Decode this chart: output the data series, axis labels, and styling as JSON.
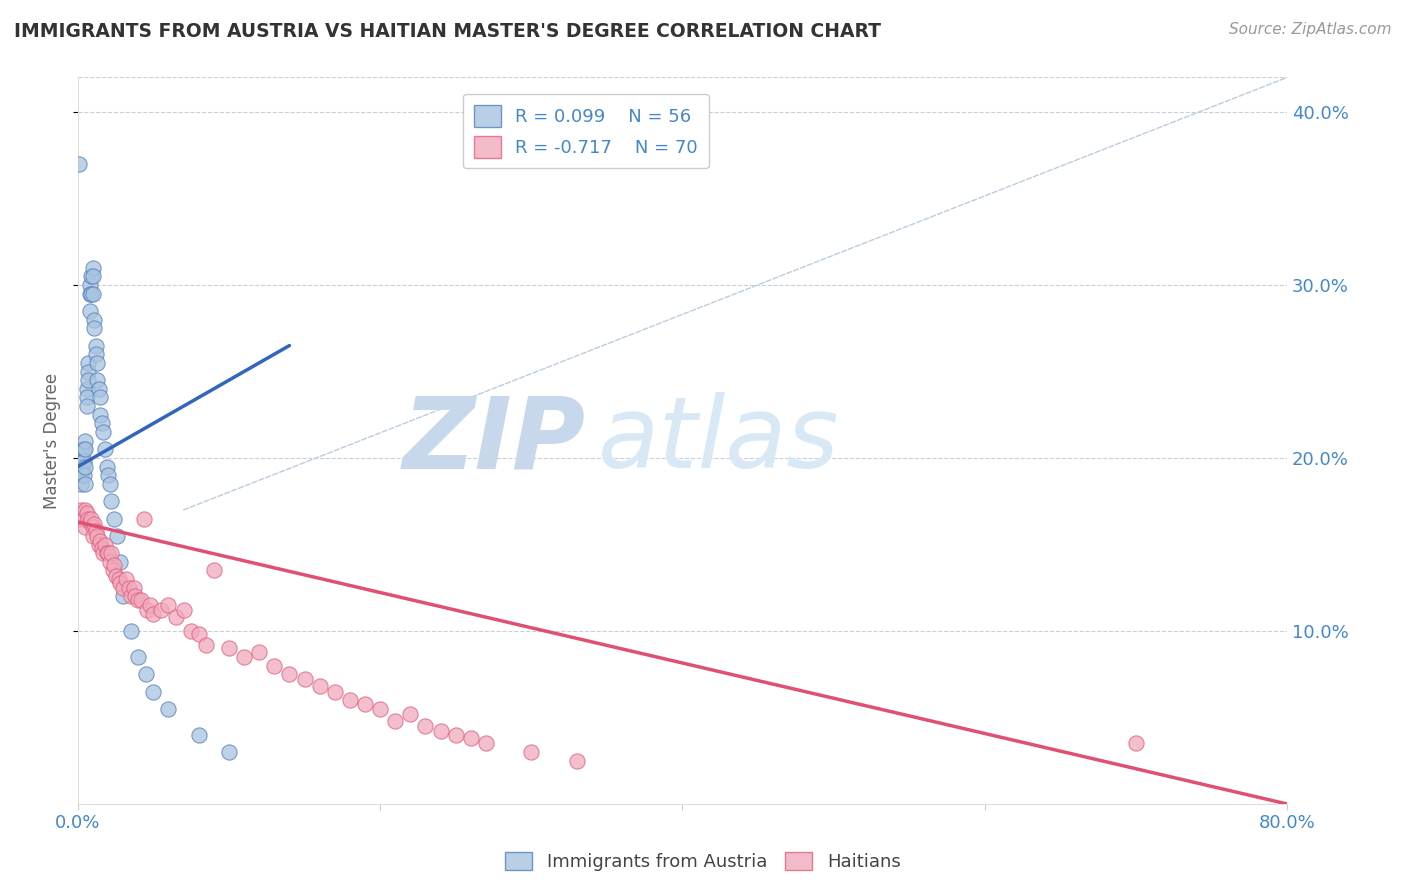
{
  "title": "IMMIGRANTS FROM AUSTRIA VS HAITIAN MASTER'S DEGREE CORRELATION CHART",
  "source": "Source: ZipAtlas.com",
  "ylabel": "Master's Degree",
  "legend_blue_label": "Immigrants from Austria",
  "legend_pink_label": "Haitians",
  "legend_blue_r": "R = 0.099",
  "legend_blue_n": "N = 56",
  "legend_pink_r": "R = -0.717",
  "legend_pink_n": "N = 70",
  "watermark_zip": "ZIP",
  "watermark_atlas": "atlas",
  "xlim": [
    0.0,
    0.8
  ],
  "ylim": [
    0.0,
    0.42
  ],
  "yticks": [
    0.1,
    0.2,
    0.3,
    0.4
  ],
  "ytick_labels": [
    "10.0%",
    "20.0%",
    "30.0%",
    "40.0%"
  ],
  "blue_scatter_x": [
    0.001,
    0.001,
    0.002,
    0.002,
    0.002,
    0.003,
    0.003,
    0.003,
    0.004,
    0.004,
    0.004,
    0.005,
    0.005,
    0.005,
    0.005,
    0.006,
    0.006,
    0.006,
    0.007,
    0.007,
    0.007,
    0.008,
    0.008,
    0.008,
    0.009,
    0.009,
    0.01,
    0.01,
    0.01,
    0.011,
    0.011,
    0.012,
    0.012,
    0.013,
    0.013,
    0.014,
    0.015,
    0.015,
    0.016,
    0.017,
    0.018,
    0.019,
    0.02,
    0.021,
    0.022,
    0.024,
    0.026,
    0.028,
    0.03,
    0.035,
    0.04,
    0.045,
    0.05,
    0.06,
    0.08,
    0.1
  ],
  "blue_scatter_y": [
    0.37,
    0.195,
    0.2,
    0.195,
    0.185,
    0.205,
    0.195,
    0.192,
    0.205,
    0.198,
    0.19,
    0.21,
    0.205,
    0.195,
    0.185,
    0.24,
    0.235,
    0.23,
    0.255,
    0.25,
    0.245,
    0.3,
    0.295,
    0.285,
    0.305,
    0.295,
    0.31,
    0.305,
    0.295,
    0.28,
    0.275,
    0.265,
    0.26,
    0.255,
    0.245,
    0.24,
    0.235,
    0.225,
    0.22,
    0.215,
    0.205,
    0.195,
    0.19,
    0.185,
    0.175,
    0.165,
    0.155,
    0.14,
    0.12,
    0.1,
    0.085,
    0.075,
    0.065,
    0.055,
    0.04,
    0.03
  ],
  "pink_scatter_x": [
    0.001,
    0.002,
    0.003,
    0.004,
    0.005,
    0.005,
    0.006,
    0.007,
    0.008,
    0.009,
    0.01,
    0.01,
    0.011,
    0.012,
    0.013,
    0.014,
    0.015,
    0.016,
    0.017,
    0.018,
    0.019,
    0.02,
    0.021,
    0.022,
    0.023,
    0.024,
    0.025,
    0.027,
    0.028,
    0.03,
    0.032,
    0.034,
    0.035,
    0.037,
    0.038,
    0.04,
    0.042,
    0.044,
    0.046,
    0.048,
    0.05,
    0.055,
    0.06,
    0.065,
    0.07,
    0.075,
    0.08,
    0.085,
    0.09,
    0.1,
    0.11,
    0.12,
    0.13,
    0.14,
    0.15,
    0.16,
    0.17,
    0.18,
    0.19,
    0.2,
    0.21,
    0.22,
    0.23,
    0.24,
    0.25,
    0.26,
    0.27,
    0.3,
    0.33,
    0.7
  ],
  "pink_scatter_y": [
    0.165,
    0.17,
    0.168,
    0.165,
    0.17,
    0.16,
    0.168,
    0.165,
    0.163,
    0.165,
    0.16,
    0.155,
    0.162,
    0.158,
    0.155,
    0.15,
    0.152,
    0.148,
    0.145,
    0.15,
    0.145,
    0.145,
    0.14,
    0.145,
    0.135,
    0.138,
    0.132,
    0.13,
    0.128,
    0.125,
    0.13,
    0.125,
    0.12,
    0.125,
    0.12,
    0.118,
    0.118,
    0.165,
    0.112,
    0.115,
    0.11,
    0.112,
    0.115,
    0.108,
    0.112,
    0.1,
    0.098,
    0.092,
    0.135,
    0.09,
    0.085,
    0.088,
    0.08,
    0.075,
    0.072,
    0.068,
    0.065,
    0.06,
    0.058,
    0.055,
    0.048,
    0.052,
    0.045,
    0.042,
    0.04,
    0.038,
    0.035,
    0.03,
    0.025,
    0.035
  ],
  "blue_line_x": [
    0.0,
    0.14
  ],
  "blue_line_y": [
    0.195,
    0.265
  ],
  "pink_line_x": [
    0.0,
    0.8
  ],
  "pink_line_y": [
    0.163,
    0.0
  ],
  "dashed_line_x": [
    0.07,
    0.8
  ],
  "dashed_line_y": [
    0.17,
    0.42
  ],
  "blue_color": "#A8C4E0",
  "blue_edge_color": "#5580BB",
  "pink_color": "#F0AABC",
  "pink_edge_color": "#E06080",
  "blue_line_color": "#3366BB",
  "pink_line_color": "#E05070",
  "dashed_color": "#BBCCDD",
  "title_color": "#333333",
  "right_axis_color": "#4488CC",
  "background_color": "#FFFFFF",
  "grid_color": "#CCCCDD",
  "watermark_color_zip": "#C8D8EC",
  "watermark_color_atlas": "#D8E8F4"
}
